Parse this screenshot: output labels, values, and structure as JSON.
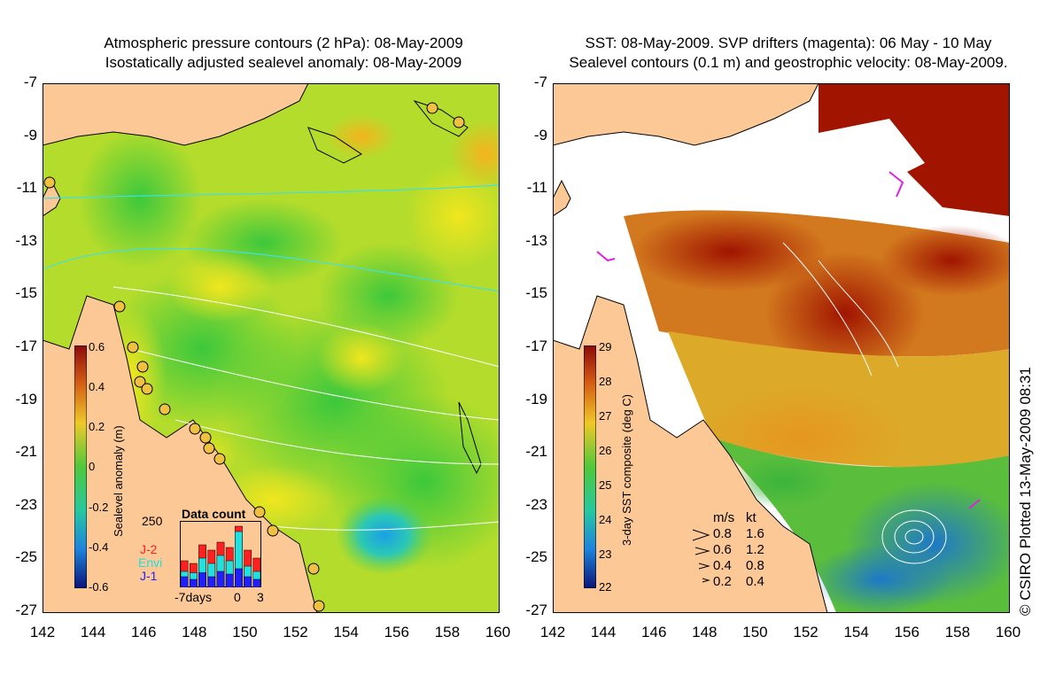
{
  "left_panel": {
    "title_line1": "Atmospheric pressure contours (2 hPa): 08-May-2009",
    "title_line2": "Isostatically adjusted sealevel anomaly: 08-May-2009",
    "colorbar": {
      "label": "Sealevel anomaly (m)",
      "ticks": [
        "0.6",
        "0.4",
        "0.2",
        "0",
        "-0.2",
        "-0.4",
        "-0.6"
      ],
      "range": [
        -0.6,
        0.6
      ]
    },
    "data_count": {
      "title": "Data count",
      "max_label": "250",
      "xlabel_left": "-7days",
      "xlabel_mid": "0",
      "xlabel_right": "3",
      "series": [
        {
          "name": "J-2",
          "color": "#ff2020"
        },
        {
          "name": "Envi",
          "color": "#20e0e0"
        },
        {
          "name": "J-1",
          "color": "#2020ff"
        }
      ],
      "bars": [
        {
          "j1": 40,
          "envi": 60,
          "j2": 100
        },
        {
          "j1": 30,
          "envi": 55,
          "j2": 90
        },
        {
          "j1": 55,
          "envi": 110,
          "j2": 160
        },
        {
          "j1": 40,
          "envi": 90,
          "j2": 140
        },
        {
          "j1": 60,
          "envi": 120,
          "j2": 170
        },
        {
          "j1": 50,
          "envi": 100,
          "j2": 150
        },
        {
          "j1": 70,
          "envi": 210,
          "j2": 230
        },
        {
          "j1": 40,
          "envi": 80,
          "j2": 140
        },
        {
          "j1": 30,
          "envi": 60,
          "j2": 110
        }
      ]
    }
  },
  "right_panel": {
    "title_line1": "SST: 08-May-2009. SVP drifters (magenta): 06 May - 10 May",
    "title_line2": "Sealevel contours (0.1 m) and geostrophic velocity: 08-May-2009.",
    "colorbar": {
      "label": "3-day SST composite (deg C)",
      "ticks": [
        "29",
        "28",
        "27",
        "26",
        "25",
        "24",
        "23",
        "22"
      ],
      "range": [
        22,
        29
      ]
    },
    "velocity_legend": {
      "header_ms": "m/s",
      "header_kt": "kt",
      "rows": [
        {
          "ms": "0.8",
          "kt": "1.6"
        },
        {
          "ms": "0.6",
          "kt": "1.2"
        },
        {
          "ms": "0.4",
          "kt": "0.8"
        },
        {
          "ms": "0.2",
          "kt": "0.4"
        }
      ]
    }
  },
  "axes": {
    "lat_ticks": [
      "-7",
      "-9",
      "-11",
      "-13",
      "-15",
      "-17",
      "-19",
      "-21",
      "-23",
      "-25",
      "-27"
    ],
    "lon_ticks": [
      "142",
      "144",
      "146",
      "148",
      "150",
      "152",
      "154",
      "156",
      "158",
      "160"
    ],
    "lat_range": [
      -27,
      -7
    ],
    "lon_range": [
      142,
      160
    ]
  },
  "credit": "© CSIRO Plotted 13-May-2009 08:31",
  "colors": {
    "land": "#fcc896",
    "ocean_anomaly": "#b4dc2c",
    "sst_warm": "#b41e00"
  }
}
